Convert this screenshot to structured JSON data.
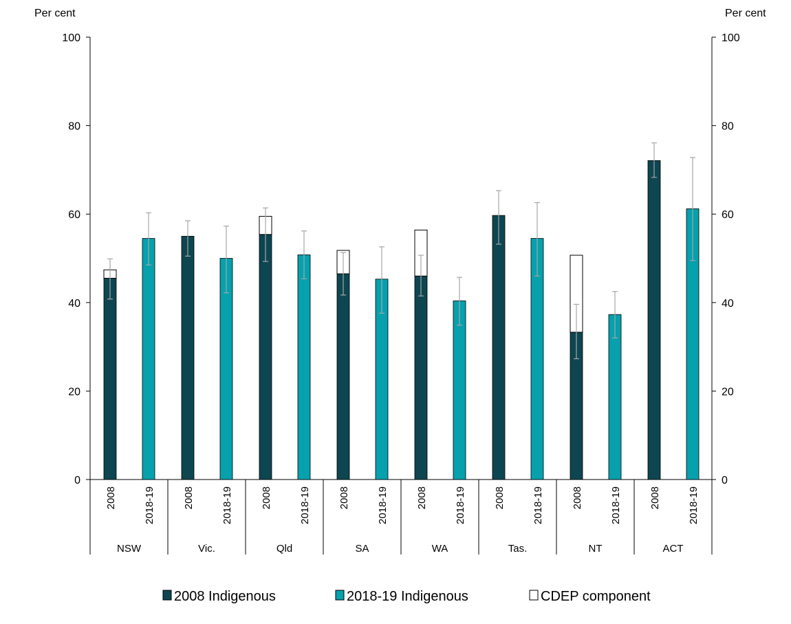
{
  "chart_data": {
    "type": "bar",
    "y_axis_left_unit": "Per cent",
    "y_axis_right_unit": "Per cent",
    "ylim": [
      0,
      100
    ],
    "yticks": [
      0,
      20,
      40,
      60,
      80,
      100
    ],
    "grid": false,
    "legend_position": "bottom",
    "legend": [
      {
        "key": "indig2008",
        "label": "2008 Indigenous",
        "color": "#0d4651"
      },
      {
        "key": "indig2019",
        "label": "2018-19 Indigenous",
        "color": "#07a0ad"
      },
      {
        "key": "cdep",
        "label": "CDEP component",
        "color": "#ffffff"
      }
    ],
    "year_labels": [
      "2008",
      "2018-19"
    ],
    "groups": [
      {
        "state": "NSW",
        "y2008": 45.5,
        "cdep": 1.9,
        "err2008": [
          40.8,
          49.9
        ],
        "y2019": 54.5,
        "err2019": [
          48.5,
          60.3
        ]
      },
      {
        "state": "Vic.",
        "y2008": 55.0,
        "cdep": 0.0,
        "err2008": [
          50.5,
          58.5
        ],
        "y2019": 50.0,
        "err2019": [
          42.2,
          57.3
        ]
      },
      {
        "state": "Qld",
        "y2008": 55.4,
        "cdep": 4.1,
        "err2008": [
          49.3,
          61.4
        ],
        "y2019": 50.8,
        "err2019": [
          45.4,
          56.2
        ]
      },
      {
        "state": "SA",
        "y2008": 46.5,
        "cdep": 5.3,
        "err2008": [
          41.7,
          51.3
        ],
        "y2019": 45.3,
        "err2019": [
          37.6,
          52.6
        ]
      },
      {
        "state": "WA",
        "y2008": 46.0,
        "cdep": 10.4,
        "err2008": [
          41.5,
          50.7
        ],
        "y2019": 40.4,
        "err2019": [
          34.9,
          45.7
        ]
      },
      {
        "state": "Tas.",
        "y2008": 59.7,
        "cdep": 0.0,
        "err2008": [
          53.2,
          65.3
        ],
        "y2019": 54.5,
        "err2019": [
          46.0,
          62.6
        ]
      },
      {
        "state": "NT",
        "y2008": 33.3,
        "cdep": 17.4,
        "err2008": [
          27.3,
          39.6
        ],
        "y2019": 37.3,
        "err2019": [
          32.0,
          42.5
        ]
      },
      {
        "state": "ACT",
        "y2008": 72.1,
        "cdep": 0.0,
        "err2008": [
          68.3,
          76.1
        ],
        "y2019": 61.2,
        "err2019": [
          49.5,
          72.8
        ]
      }
    ]
  }
}
